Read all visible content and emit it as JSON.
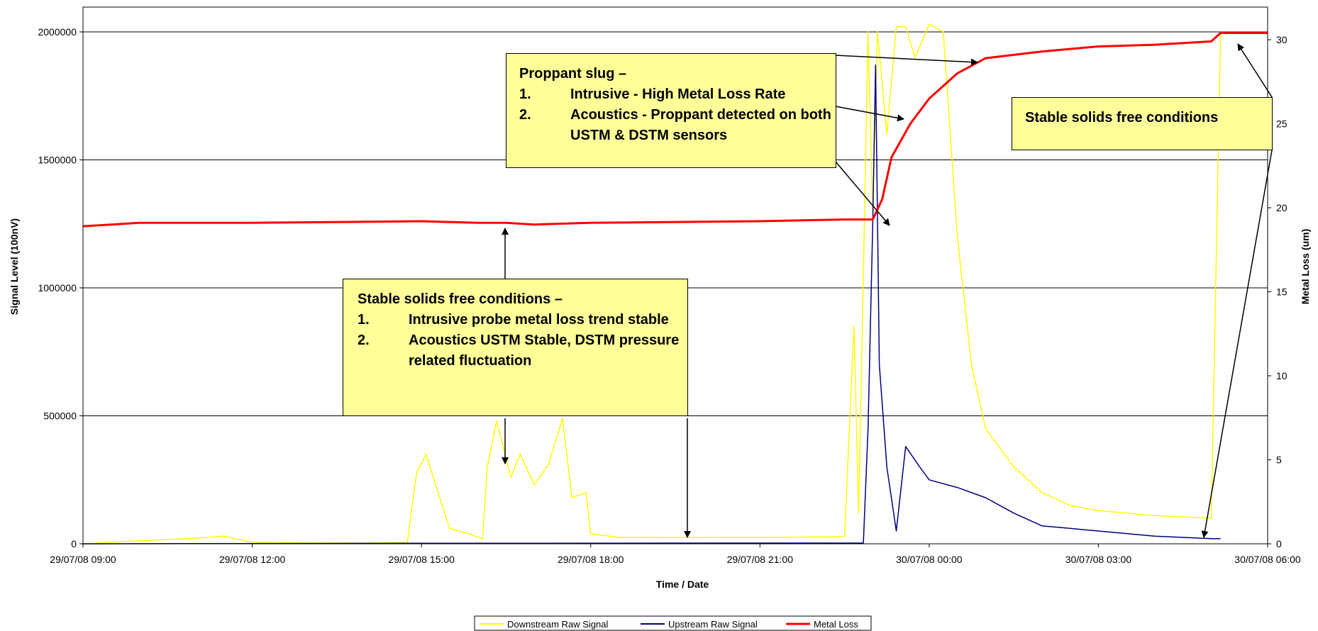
{
  "chart_data": {
    "type": "line",
    "x_range": [
      "29/07/08 09:00",
      "30/07/08 06:00"
    ],
    "x_ticks": [
      "29/07/08 09:00",
      "29/07/08 12:00",
      "29/07/08 15:00",
      "29/07/08 18:00",
      "29/07/08 21:00",
      "30/07/08 00:00",
      "30/07/08 03:00",
      "30/07/08 06:00"
    ],
    "xlabel": "Time / Date",
    "ylabel": "Signal Level (100nV)",
    "y_ticks": [
      "0",
      "500000",
      "1000000",
      "1500000",
      "2000000"
    ],
    "ylim": [
      0,
      2000000
    ],
    "y2label": "Metal Loss (um)",
    "y2_ticks": [
      "0",
      "5",
      "10",
      "15",
      "20",
      "25",
      "30"
    ],
    "y2lim": [
      0,
      30
    ],
    "grid": "horizontal",
    "legend_position": "bottom",
    "series": [
      {
        "name": "Downstream Raw Signal",
        "axis": "left",
        "color": "#ffff00",
        "points": [
          [
            "29/07/08 09:00",
            0
          ],
          [
            "29/07/08 10:00",
            12000
          ],
          [
            "29/07/08 11:00",
            22000
          ],
          [
            "29/07/08 11:30",
            30000
          ],
          [
            "29/07/08 12:00",
            6000
          ],
          [
            "29/07/08 13:00",
            3000
          ],
          [
            "29/07/08 14:00",
            3000
          ],
          [
            "29/07/08 14:45",
            5000
          ],
          [
            "29/07/08 14:50",
            150000
          ],
          [
            "29/07/08 14:55",
            280000
          ],
          [
            "29/07/08 15:05",
            350000
          ],
          [
            "29/07/08 15:15",
            230000
          ],
          [
            "29/07/08 15:30",
            60000
          ],
          [
            "29/07/08 15:50",
            40000
          ],
          [
            "29/07/08 16:05",
            20000
          ],
          [
            "29/07/08 16:10",
            300000
          ],
          [
            "29/07/08 16:20",
            480000
          ],
          [
            "29/07/08 16:35",
            260000
          ],
          [
            "29/07/08 16:45",
            350000
          ],
          [
            "29/07/08 17:00",
            230000
          ],
          [
            "29/07/08 17:15",
            310000
          ],
          [
            "29/07/08 17:30",
            490000
          ],
          [
            "29/07/08 17:40",
            180000
          ],
          [
            "29/07/08 17:55",
            200000
          ],
          [
            "29/07/08 18:00",
            40000
          ],
          [
            "29/07/08 18:30",
            25000
          ],
          [
            "29/07/08 20:00",
            25000
          ],
          [
            "29/07/08 21:00",
            25000
          ],
          [
            "29/07/08 22:30",
            28000
          ],
          [
            "29/07/08 22:40",
            850000
          ],
          [
            "29/07/08 22:45",
            120000
          ],
          [
            "29/07/08 22:55",
            2000000
          ],
          [
            "29/07/08 23:00",
            1300000
          ],
          [
            "29/07/08 23:05",
            2000000
          ],
          [
            "29/07/08 23:15",
            1600000
          ],
          [
            "29/07/08 23:25",
            2020000
          ],
          [
            "29/07/08 23:35",
            2020000
          ],
          [
            "29/07/08 23:45",
            1900000
          ],
          [
            "30/07/08 00:00",
            2030000
          ],
          [
            "30/07/08 00:15",
            2000000
          ],
          [
            "30/07/08 00:30",
            1200000
          ],
          [
            "30/07/08 00:45",
            700000
          ],
          [
            "30/07/08 01:00",
            450000
          ],
          [
            "30/07/08 01:30",
            300000
          ],
          [
            "30/07/08 02:00",
            200000
          ],
          [
            "30/07/08 02:30",
            150000
          ],
          [
            "30/07/08 03:00",
            130000
          ],
          [
            "30/07/08 04:00",
            110000
          ],
          [
            "30/07/08 05:00",
            100000
          ],
          [
            "30/07/08 05:10",
            2000000
          ]
        ]
      },
      {
        "name": "Upstream Raw Signal",
        "axis": "left",
        "color": "#000080",
        "points": [
          [
            "29/07/08 09:00",
            0
          ],
          [
            "29/07/08 15:00",
            2000
          ],
          [
            "29/07/08 22:50",
            3000
          ],
          [
            "29/07/08 22:55",
            450000
          ],
          [
            "29/07/08 23:00",
            1250000
          ],
          [
            "29/07/08 23:03",
            1870000
          ],
          [
            "29/07/08 23:07",
            700000
          ],
          [
            "29/07/08 23:15",
            300000
          ],
          [
            "29/07/08 23:25",
            50000
          ],
          [
            "29/07/08 23:35",
            380000
          ],
          [
            "29/07/08 23:50",
            300000
          ],
          [
            "30/07/08 00:00",
            250000
          ],
          [
            "30/07/08 00:30",
            220000
          ],
          [
            "30/07/08 01:00",
            180000
          ],
          [
            "30/07/08 01:30",
            120000
          ],
          [
            "30/07/08 02:00",
            70000
          ],
          [
            "30/07/08 02:30",
            60000
          ],
          [
            "30/07/08 03:00",
            50000
          ],
          [
            "30/07/08 04:00",
            30000
          ],
          [
            "30/07/08 05:00",
            20000
          ],
          [
            "30/07/08 05:10",
            20000
          ]
        ]
      },
      {
        "name": "Metal Loss",
        "axis": "right",
        "color": "#ff0000",
        "points": [
          [
            "29/07/08 09:00",
            18.9
          ],
          [
            "29/07/08 09:30",
            19.0
          ],
          [
            "29/07/08 10:00",
            19.1
          ],
          [
            "29/07/08 12:00",
            19.1
          ],
          [
            "29/07/08 15:00",
            19.2
          ],
          [
            "29/07/08 16:00",
            19.1
          ],
          [
            "29/07/08 16:30",
            19.1
          ],
          [
            "29/07/08 17:00",
            19.0
          ],
          [
            "29/07/08 18:00",
            19.1
          ],
          [
            "29/07/08 21:00",
            19.2
          ],
          [
            "29/07/08 22:30",
            19.3
          ],
          [
            "29/07/08 23:00",
            19.3
          ],
          [
            "29/07/08 23:10",
            20.5
          ],
          [
            "29/07/08 23:20",
            23.0
          ],
          [
            "29/07/08 23:40",
            25.0
          ],
          [
            "30/07/08 00:00",
            26.5
          ],
          [
            "30/07/08 00:30",
            28.0
          ],
          [
            "30/07/08 01:00",
            28.9
          ],
          [
            "30/07/08 02:00",
            29.3
          ],
          [
            "30/07/08 03:00",
            29.6
          ],
          [
            "30/07/08 04:00",
            29.7
          ],
          [
            "30/07/08 05:00",
            29.9
          ],
          [
            "30/07/08 05:10",
            30.4
          ],
          [
            "30/07/08 06:00",
            30.4
          ]
        ]
      }
    ]
  },
  "annotations": {
    "proppant": {
      "heading": "Proppant slug –",
      "items": [
        {
          "num": "1.",
          "text": "Intrusive - High Metal Loss Rate"
        },
        {
          "num": "2.",
          "text": "Acoustics - Proppant detected on both USTM & DSTM sensors"
        }
      ]
    },
    "stable_left": {
      "heading": "Stable solids free conditions –",
      "items": [
        {
          "num": "1.",
          "text": "Intrusive probe metal loss trend stable"
        },
        {
          "num": "2.",
          "text": "Acoustics USTM Stable, DSTM pressure related fluctuation"
        }
      ]
    },
    "stable_right": {
      "text": "Stable solids free conditions"
    }
  }
}
